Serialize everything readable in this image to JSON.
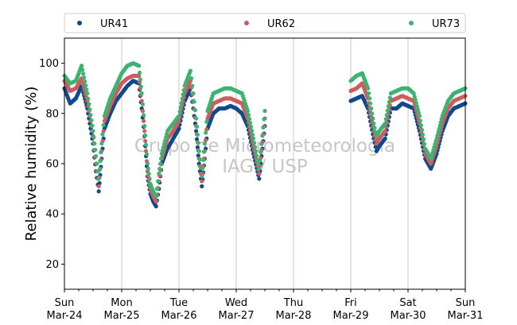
{
  "chart_data": {
    "type": "scatter",
    "ylabel": "Relative humidity (%)",
    "xlabel": "",
    "ylim": [
      10,
      110
    ],
    "xlim": [
      0,
      7
    ],
    "yticks": [
      20,
      40,
      60,
      80,
      100
    ],
    "grid": "vertical lines at day boundaries",
    "legend_position": "top, outside plot, horizontal",
    "watermark": [
      "Grupo de Micrometeorologia",
      "IAG / USP"
    ],
    "x_ticks": [
      {
        "day": "Sun",
        "date": "Mar-24"
      },
      {
        "day": "Mon",
        "date": "Mar-25"
      },
      {
        "day": "Tue",
        "date": "Mar-26"
      },
      {
        "day": "Wed",
        "date": "Mar-27"
      },
      {
        "day": "Thu",
        "date": "Mar-28"
      },
      {
        "day": "Fri",
        "date": "Mar-29"
      },
      {
        "day": "Sat",
        "date": "Mar-30"
      },
      {
        "day": "Sun",
        "date": "Mar-31"
      }
    ],
    "x_unit": "days since Mar-24 00:00",
    "series": [
      {
        "name": "UR41",
        "color": "#0e4a8c",
        "points": [
          [
            0.0,
            90
          ],
          [
            0.1,
            84
          ],
          [
            0.2,
            86
          ],
          [
            0.3,
            91
          ],
          [
            0.4,
            82
          ],
          [
            0.5,
            68
          ],
          [
            0.55,
            57
          ],
          [
            0.6,
            49
          ],
          [
            0.65,
            62
          ],
          [
            0.7,
            74
          ],
          [
            0.8,
            80
          ],
          [
            0.9,
            85
          ],
          [
            1.0,
            88
          ],
          [
            1.1,
            91
          ],
          [
            1.2,
            93
          ],
          [
            1.3,
            92
          ],
          [
            1.35,
            82
          ],
          [
            1.4,
            71
          ],
          [
            1.45,
            55
          ],
          [
            1.5,
            48
          ],
          [
            1.55,
            45
          ],
          [
            1.6,
            43
          ],
          [
            1.65,
            50
          ],
          [
            1.7,
            60
          ],
          [
            1.8,
            66
          ],
          [
            1.9,
            70
          ],
          [
            2.0,
            74
          ],
          [
            2.1,
            85
          ],
          [
            2.2,
            90
          ],
          [
            2.25,
            82
          ],
          [
            2.3,
            73
          ],
          [
            2.35,
            60
          ],
          [
            2.4,
            51
          ],
          [
            2.45,
            62
          ],
          [
            2.5,
            74
          ],
          [
            2.6,
            80
          ],
          [
            2.7,
            82
          ],
          [
            2.8,
            82
          ],
          [
            2.9,
            83
          ],
          [
            3.0,
            82
          ],
          [
            3.1,
            80
          ],
          [
            3.2,
            75
          ],
          [
            3.3,
            64
          ],
          [
            3.4,
            54
          ],
          [
            3.5,
            75
          ]
        ],
        "points_after_gap": [
          [
            5.0,
            85
          ],
          [
            5.1,
            86
          ],
          [
            5.2,
            87
          ],
          [
            5.3,
            82
          ],
          [
            5.4,
            70
          ],
          [
            5.45,
            65
          ],
          [
            5.5,
            67
          ],
          [
            5.6,
            70
          ],
          [
            5.7,
            82
          ],
          [
            5.8,
            82
          ],
          [
            5.9,
            84
          ],
          [
            6.0,
            83
          ],
          [
            6.1,
            82
          ],
          [
            6.2,
            73
          ],
          [
            6.3,
            62
          ],
          [
            6.4,
            58
          ],
          [
            6.5,
            64
          ],
          [
            6.6,
            73
          ],
          [
            6.7,
            79
          ],
          [
            6.8,
            82
          ],
          [
            6.9,
            83
          ],
          [
            7.0,
            84
          ]
        ]
      },
      {
        "name": "UR62",
        "color": "#cd5c5c",
        "points": [
          [
            0.0,
            93
          ],
          [
            0.1,
            89
          ],
          [
            0.2,
            90
          ],
          [
            0.3,
            94
          ],
          [
            0.4,
            85
          ],
          [
            0.5,
            71
          ],
          [
            0.55,
            60
          ],
          [
            0.6,
            51
          ],
          [
            0.65,
            65
          ],
          [
            0.7,
            77
          ],
          [
            0.8,
            83
          ],
          [
            0.9,
            88
          ],
          [
            1.0,
            92
          ],
          [
            1.1,
            94
          ],
          [
            1.2,
            95
          ],
          [
            1.3,
            95
          ],
          [
            1.35,
            85
          ],
          [
            1.4,
            73
          ],
          [
            1.45,
            57
          ],
          [
            1.5,
            50
          ],
          [
            1.55,
            47
          ],
          [
            1.6,
            45
          ],
          [
            1.65,
            53
          ],
          [
            1.7,
            62
          ],
          [
            1.8,
            70
          ],
          [
            1.9,
            73
          ],
          [
            2.0,
            77
          ],
          [
            2.1,
            88
          ],
          [
            2.2,
            93
          ],
          [
            2.25,
            85
          ],
          [
            2.3,
            75
          ],
          [
            2.35,
            62
          ],
          [
            2.4,
            53
          ],
          [
            2.45,
            65
          ],
          [
            2.5,
            78
          ],
          [
            2.6,
            84
          ],
          [
            2.7,
            85
          ],
          [
            2.8,
            86
          ],
          [
            2.9,
            86
          ],
          [
            3.0,
            85
          ],
          [
            3.1,
            84
          ],
          [
            3.2,
            78
          ],
          [
            3.3,
            67
          ],
          [
            3.4,
            56
          ],
          [
            3.5,
            78
          ]
        ],
        "points_after_gap": [
          [
            5.0,
            89
          ],
          [
            5.1,
            90
          ],
          [
            5.2,
            92
          ],
          [
            5.3,
            86
          ],
          [
            5.4,
            73
          ],
          [
            5.45,
            68
          ],
          [
            5.5,
            70
          ],
          [
            5.6,
            73
          ],
          [
            5.7,
            85
          ],
          [
            5.8,
            86
          ],
          [
            5.9,
            87
          ],
          [
            6.0,
            86
          ],
          [
            6.1,
            85
          ],
          [
            6.2,
            76
          ],
          [
            6.3,
            64
          ],
          [
            6.4,
            60
          ],
          [
            6.5,
            67
          ],
          [
            6.6,
            76
          ],
          [
            6.7,
            82
          ],
          [
            6.8,
            85
          ],
          [
            6.9,
            86
          ],
          [
            7.0,
            87
          ]
        ]
      },
      {
        "name": "UR73",
        "color": "#3cb371",
        "points": [
          [
            0.0,
            95
          ],
          [
            0.1,
            92
          ],
          [
            0.2,
            93
          ],
          [
            0.3,
            99
          ],
          [
            0.4,
            88
          ],
          [
            0.5,
            73
          ],
          [
            0.55,
            63
          ],
          [
            0.6,
            54
          ],
          [
            0.65,
            68
          ],
          [
            0.7,
            79
          ],
          [
            0.8,
            86
          ],
          [
            0.9,
            91
          ],
          [
            1.0,
            96
          ],
          [
            1.1,
            99
          ],
          [
            1.2,
            100
          ],
          [
            1.3,
            99
          ],
          [
            1.35,
            88
          ],
          [
            1.4,
            75
          ],
          [
            1.45,
            60
          ],
          [
            1.5,
            52
          ],
          [
            1.55,
            49
          ],
          [
            1.6,
            47
          ],
          [
            1.65,
            56
          ],
          [
            1.7,
            64
          ],
          [
            1.8,
            73
          ],
          [
            1.9,
            76
          ],
          [
            2.0,
            79
          ],
          [
            2.1,
            91
          ],
          [
            2.2,
            97
          ],
          [
            2.25,
            88
          ],
          [
            2.3,
            78
          ],
          [
            2.35,
            65
          ],
          [
            2.4,
            55
          ],
          [
            2.45,
            68
          ],
          [
            2.5,
            81
          ],
          [
            2.6,
            88
          ],
          [
            2.7,
            89
          ],
          [
            2.8,
            90
          ],
          [
            2.9,
            90
          ],
          [
            3.0,
            89
          ],
          [
            3.1,
            88
          ],
          [
            3.2,
            81
          ],
          [
            3.3,
            70
          ],
          [
            3.4,
            58
          ],
          [
            3.5,
            81
          ]
        ],
        "points_after_gap": [
          [
            5.0,
            93
          ],
          [
            5.1,
            95
          ],
          [
            5.2,
            96
          ],
          [
            5.3,
            90
          ],
          [
            5.4,
            76
          ],
          [
            5.45,
            71
          ],
          [
            5.5,
            73
          ],
          [
            5.6,
            76
          ],
          [
            5.7,
            88
          ],
          [
            5.8,
            89
          ],
          [
            5.9,
            90
          ],
          [
            6.0,
            90
          ],
          [
            6.1,
            88
          ],
          [
            6.2,
            79
          ],
          [
            6.3,
            66
          ],
          [
            6.4,
            62
          ],
          [
            6.5,
            70
          ],
          [
            6.6,
            79
          ],
          [
            6.7,
            85
          ],
          [
            6.8,
            88
          ],
          [
            6.9,
            89
          ],
          [
            7.0,
            90
          ]
        ]
      }
    ]
  }
}
